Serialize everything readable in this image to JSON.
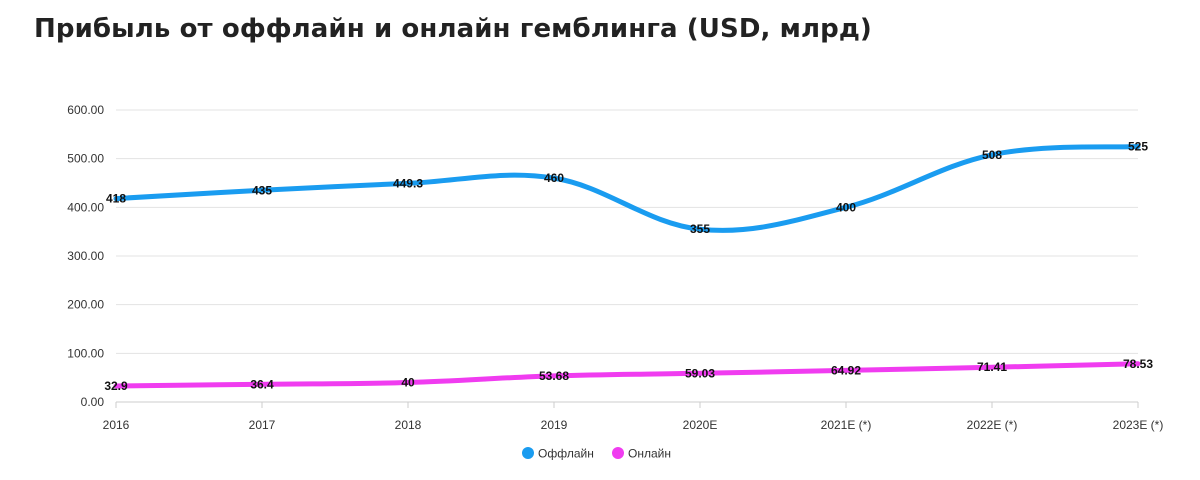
{
  "chart_data": {
    "type": "line",
    "title": "Прибыль от оффлайн и онлайн гемблинга (USD, млрд)",
    "categories": [
      "2016",
      "2017",
      "2018",
      "2019",
      "2020E",
      "2021E (*)",
      "2022E (*)",
      "2023E (*)"
    ],
    "y_ticks": [
      "0.00",
      "100.00",
      "200.00",
      "300.00",
      "400.00",
      "500.00",
      "600.00"
    ],
    "ylim": [
      0,
      600
    ],
    "grid": true,
    "legend_position": "bottom-center",
    "series": [
      {
        "name": "Оффлайн",
        "color": "#1a9cf0",
        "values": [
          418,
          435,
          449.3,
          460,
          355,
          400,
          508,
          525
        ],
        "labels": [
          "418",
          "435",
          "449.3",
          "460",
          "355",
          "400",
          "508",
          "525"
        ]
      },
      {
        "name": "Онлайн",
        "color": "#f03cf0",
        "values": [
          32.9,
          36.4,
          40,
          53.68,
          59.03,
          64.92,
          71.41,
          78.53
        ],
        "labels": [
          "32.9",
          "36.4",
          "40",
          "53.68",
          "59.03",
          "64.92",
          "71.41",
          "78.53"
        ]
      }
    ]
  }
}
